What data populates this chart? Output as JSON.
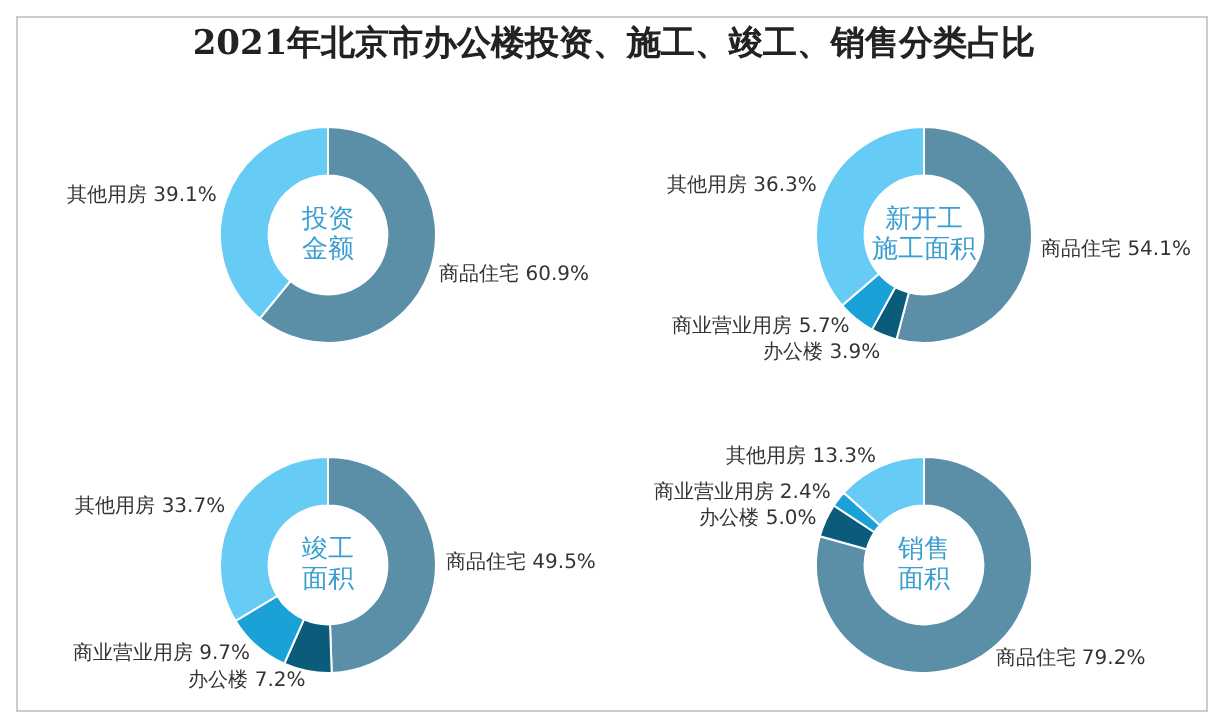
{
  "chart_data": [
    {
      "type": "other",
      "title": "2021年北京市办公楼投资、施工、竣工、销售分类占比"
    },
    {
      "type": "donut",
      "title": "投资金额",
      "categories": [
        "商品住宅",
        "其他用房"
      ],
      "values": [
        60.9,
        39.1
      ],
      "value_labels": [
        "60.9%",
        "39.1%"
      ],
      "colors": [
        "#5b8fa8",
        "#66ccf5"
      ]
    },
    {
      "type": "donut",
      "title": "新开工施工面积",
      "categories": [
        "商品住宅",
        "办公楼",
        "商业营业用房",
        "其他用房"
      ],
      "values": [
        54.1,
        3.9,
        5.7,
        36.3
      ],
      "value_labels": [
        "54.1%",
        "3.9%",
        "5.7%",
        "36.3%"
      ],
      "colors": [
        "#5b8fa8",
        "#0b5c7a",
        "#1aa1d8",
        "#66ccf5"
      ]
    },
    {
      "type": "donut",
      "title": "竣工面积",
      "categories": [
        "商品住宅",
        "办公楼",
        "商业营业用房",
        "其他用房"
      ],
      "values": [
        49.5,
        7.2,
        9.7,
        33.7
      ],
      "value_labels": [
        "49.5%",
        "7.2%",
        "9.7%",
        "33.7%"
      ],
      "colors": [
        "#5b8fa8",
        "#0b5c7a",
        "#1aa1d8",
        "#66ccf5"
      ]
    },
    {
      "type": "donut",
      "title": "销售面积",
      "categories": [
        "商品住宅",
        "办公楼",
        "商业营业用房",
        "其他用房"
      ],
      "values": [
        79.2,
        5.0,
        2.4,
        13.3
      ],
      "value_labels": [
        "79.2%",
        "5.0%",
        "2.4%",
        "13.3%"
      ],
      "colors": [
        "#5b8fa8",
        "#0b5c7a",
        "#1aa1d8",
        "#66ccf5"
      ]
    }
  ]
}
